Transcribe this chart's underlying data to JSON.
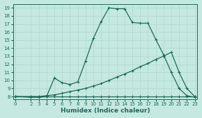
{
  "xlabel": "Humidex (Indice chaleur)",
  "bg_color": "#c5e8e0",
  "line_color": "#1a6b5a",
  "grid_color": "#b0d8d0",
  "x_ticks": [
    0,
    2,
    3,
    4,
    5,
    6,
    7,
    8,
    9,
    10,
    11,
    12,
    13,
    14,
    15,
    16,
    17,
    18,
    19,
    20,
    21,
    22,
    23
  ],
  "y_ticks": [
    8,
    9,
    10,
    11,
    12,
    13,
    14,
    15,
    16,
    17,
    18,
    19
  ],
  "xlim": [
    -0.3,
    23.3
  ],
  "ylim": [
    7.7,
    19.5
  ],
  "line1_x": [
    0,
    2,
    3,
    4,
    5,
    6,
    7,
    8,
    9,
    10,
    11,
    12,
    13,
    14,
    15,
    16,
    17,
    18,
    19,
    20,
    21,
    22,
    23
  ],
  "line1_y": [
    8.0,
    7.9,
    7.9,
    8.0,
    10.3,
    9.7,
    9.5,
    9.8,
    12.4,
    15.2,
    17.3,
    19.0,
    18.9,
    18.9,
    17.2,
    17.1,
    17.1,
    15.1,
    13.2,
    11.0,
    9.0,
    8.1,
    7.9
  ],
  "line2_x": [
    0,
    2,
    3,
    4,
    5,
    6,
    7,
    8,
    9,
    10,
    11,
    12,
    13,
    14,
    15,
    16,
    17,
    18,
    19,
    20,
    21,
    22,
    23
  ],
  "line2_y": [
    8.0,
    8.0,
    8.0,
    8.1,
    8.2,
    8.4,
    8.6,
    8.8,
    9.0,
    9.3,
    9.6,
    10.0,
    10.4,
    10.8,
    11.2,
    11.7,
    12.1,
    12.6,
    13.0,
    13.5,
    11.0,
    9.0,
    8.0
  ],
  "line3_x": [
    0,
    2,
    3,
    4,
    5,
    6,
    7,
    8,
    9,
    10,
    11,
    12,
    13,
    14,
    15,
    16,
    17,
    18,
    19,
    20,
    21,
    22,
    23
  ],
  "line3_y": [
    8.0,
    8.0,
    8.0,
    8.0,
    8.0,
    8.0,
    8.0,
    8.0,
    8.0,
    8.0,
    8.0,
    8.0,
    8.0,
    8.0,
    8.0,
    8.0,
    8.0,
    8.0,
    8.0,
    8.0,
    8.0,
    8.0,
    8.0
  ]
}
